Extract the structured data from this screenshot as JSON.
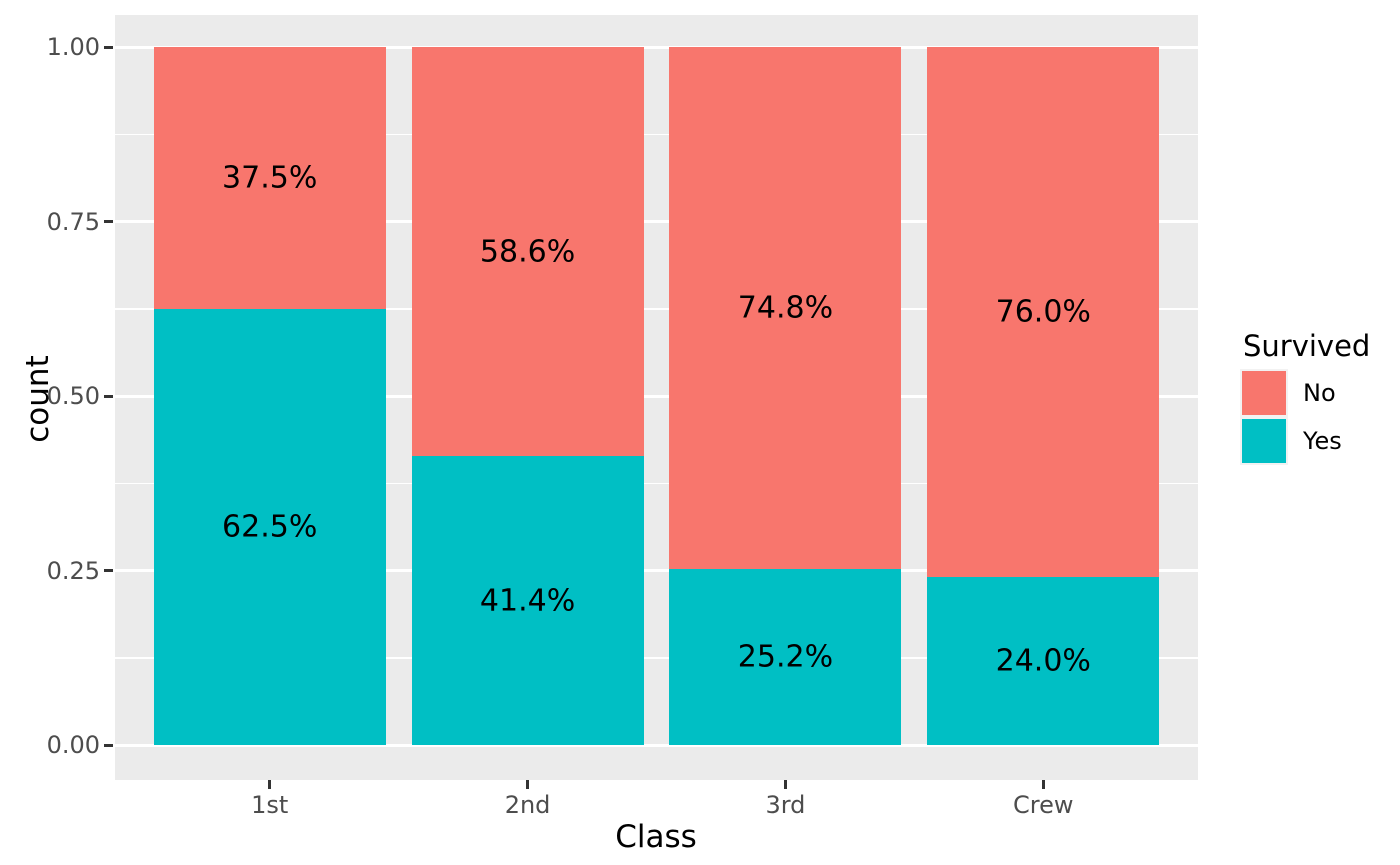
{
  "chart_data": {
    "type": "bar",
    "stacked": true,
    "normalized": true,
    "title": "",
    "xlabel": "Class",
    "ylabel": "count",
    "categories": [
      "1st",
      "2nd",
      "3rd",
      "Crew"
    ],
    "series": [
      {
        "name": "Yes",
        "color": "#00BFC4",
        "values": [
          0.625,
          0.414,
          0.252,
          0.24
        ],
        "labels": [
          "62.5%",
          "41.4%",
          "25.2%",
          "24.0%"
        ]
      },
      {
        "name": "No",
        "color": "#F8766D",
        "values": [
          0.375,
          0.586,
          0.748,
          0.76
        ],
        "labels": [
          "37.5%",
          "58.6%",
          "74.8%",
          "76.0%"
        ]
      }
    ],
    "ylim": [
      0,
      1
    ],
    "y_ticks": [
      {
        "value": 0.0,
        "label": "0.00"
      },
      {
        "value": 0.25,
        "label": "0.25"
      },
      {
        "value": 0.5,
        "label": "0.50"
      },
      {
        "value": 0.75,
        "label": "0.75"
      },
      {
        "value": 1.0,
        "label": "1.00"
      }
    ],
    "y_minor_ticks": [
      0.125,
      0.375,
      0.625,
      0.875
    ],
    "grid": true,
    "panel_background": "#EBEBEB",
    "gridline_color": "#FFFFFF",
    "axis_text_color": "#4D4D4D",
    "tick_mark_color": "#333333",
    "legend": {
      "title": "Survived",
      "position": "right",
      "entries": [
        {
          "label": "No",
          "color": "#F8766D"
        },
        {
          "label": "Yes",
          "color": "#00BFC4"
        }
      ]
    }
  }
}
